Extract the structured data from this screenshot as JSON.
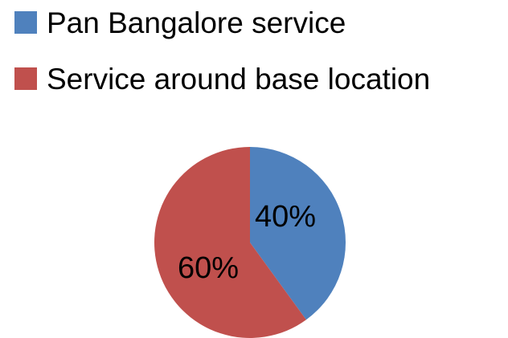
{
  "chart_data": {
    "type": "pie",
    "title": "",
    "legend_position": "top-left",
    "categories": [
      "Pan Bangalore service",
      "Service around base location"
    ],
    "values": [
      40,
      60
    ],
    "data_labels": [
      "40%",
      "60%"
    ],
    "colors": [
      "#4F81BD",
      "#C0504D"
    ],
    "start_angle_deg": 0,
    "direction": "clockwise"
  }
}
